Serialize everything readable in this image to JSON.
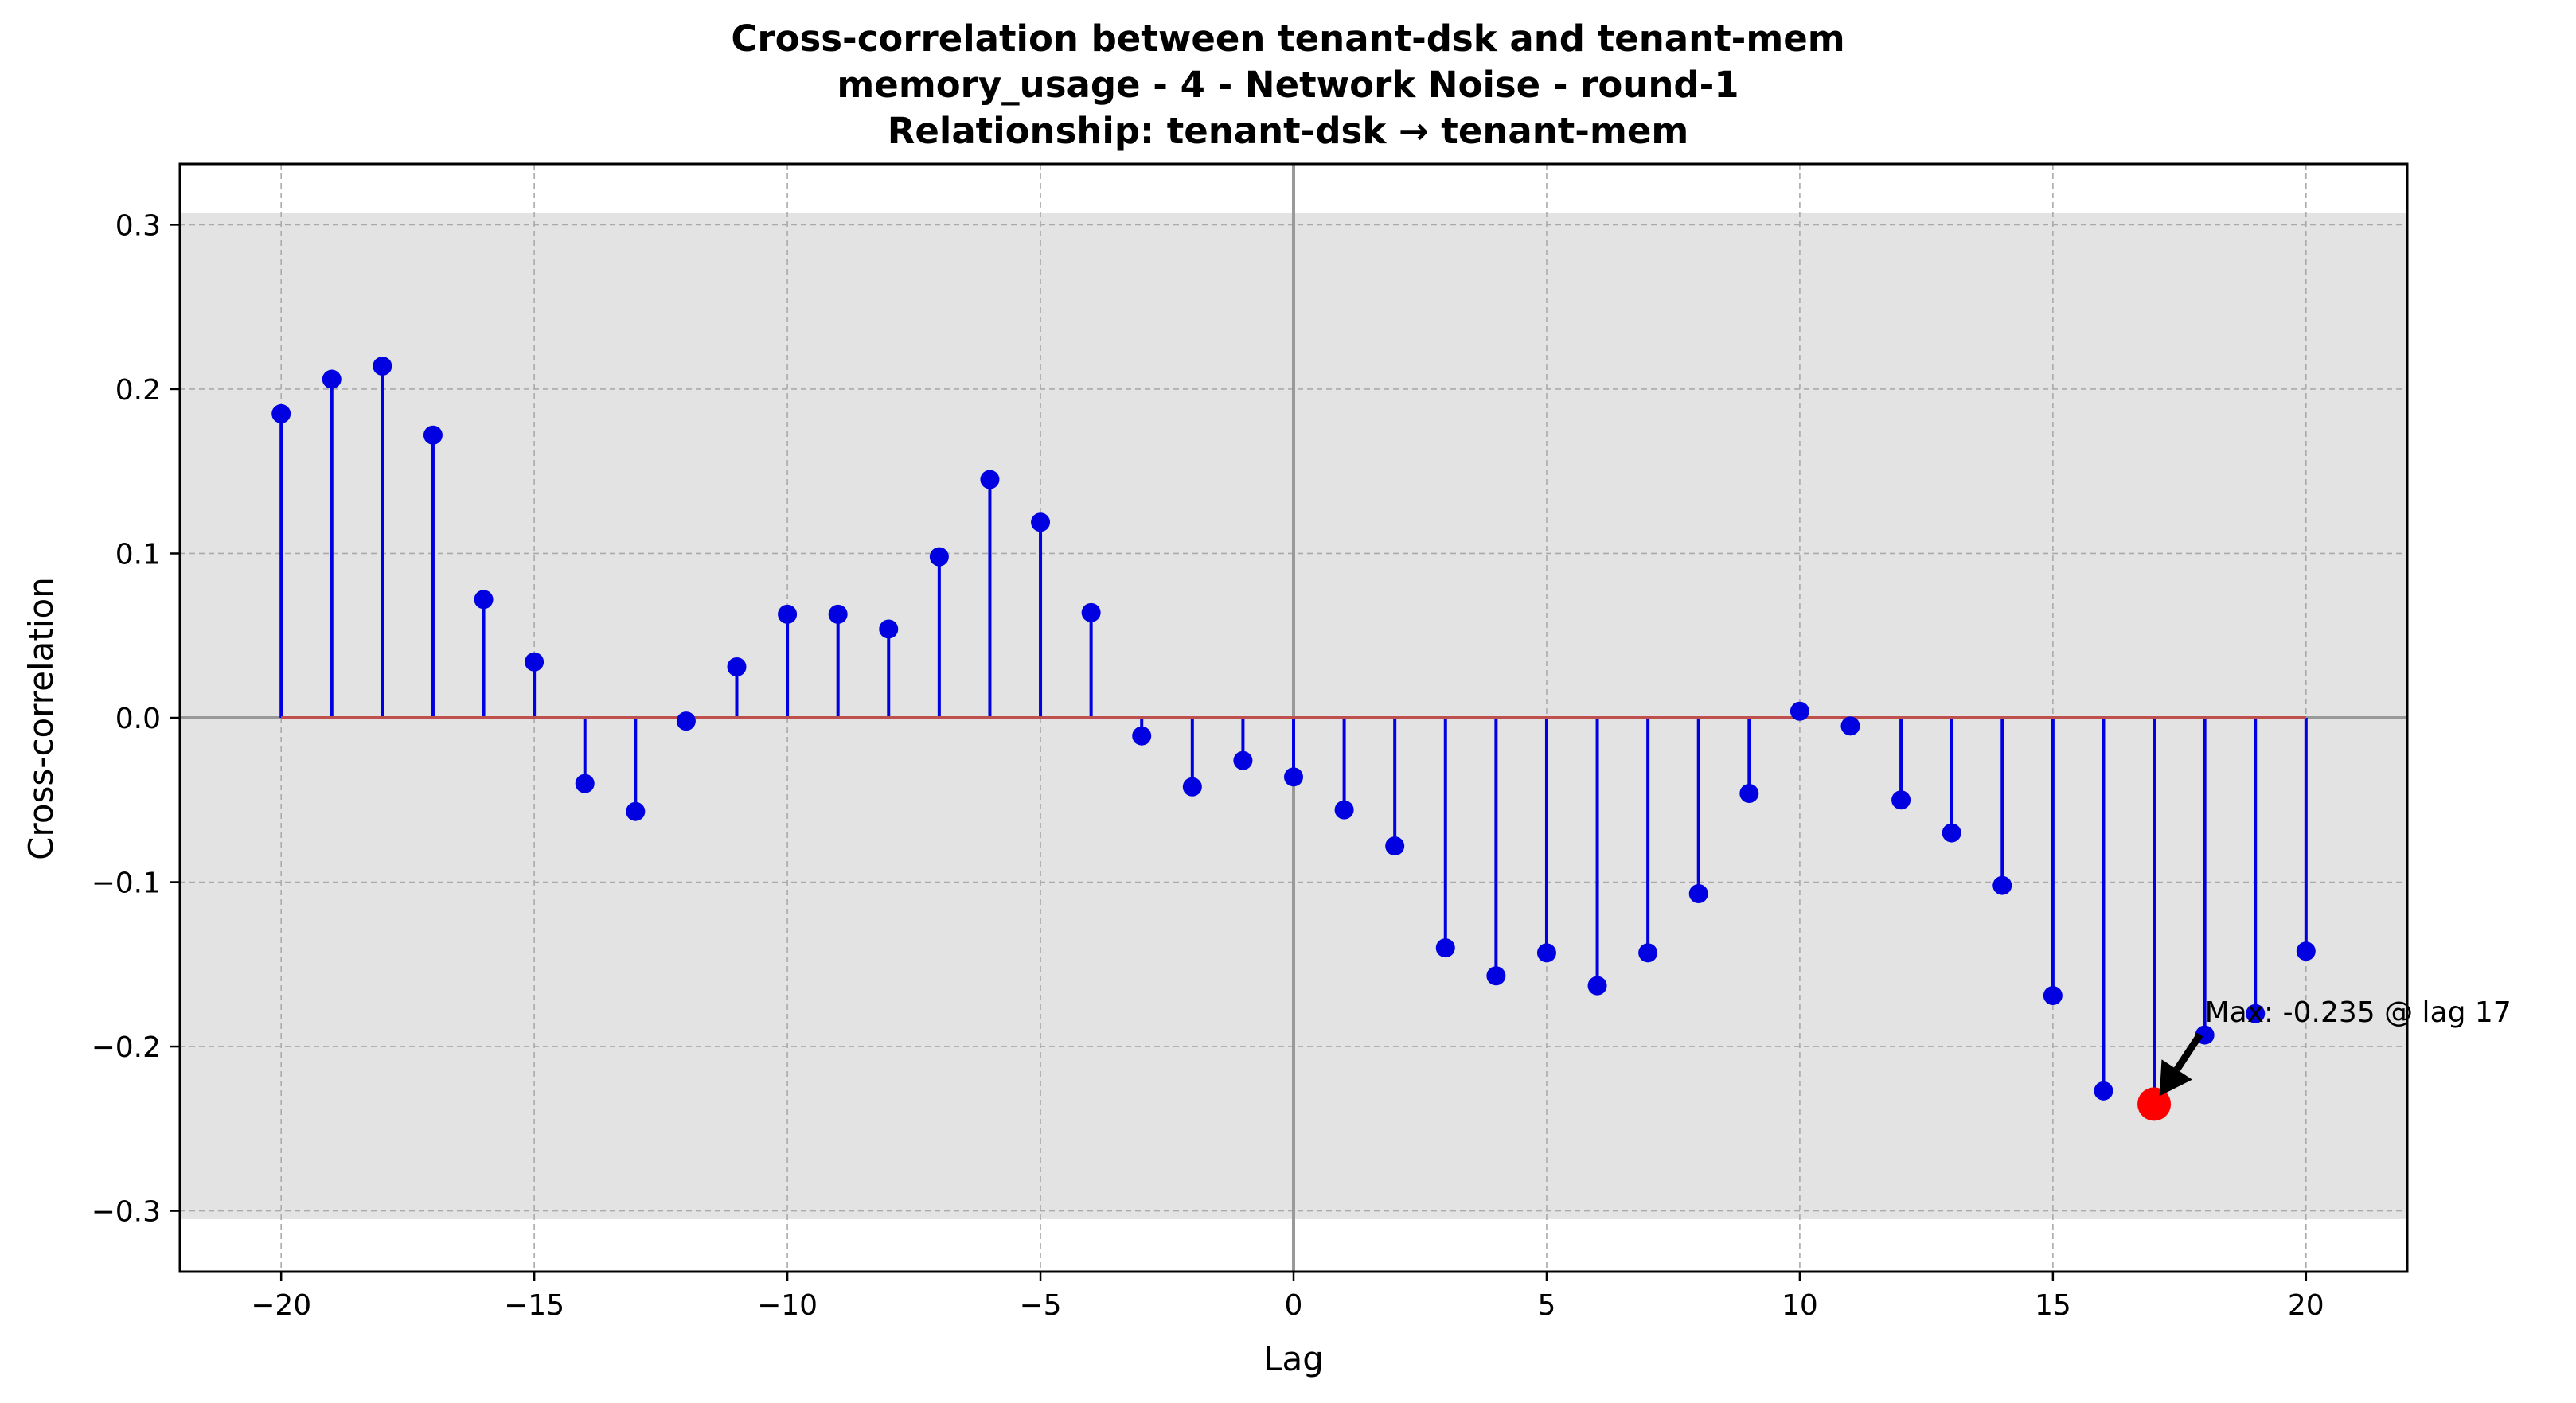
{
  "chart_data": {
    "type": "stem",
    "title_lines": [
      "Cross-correlation between tenant-dsk and tenant-mem",
      "memory_usage - 4 - Network Noise - round-1",
      "Relationship: tenant-dsk → tenant-mem"
    ],
    "xlabel": "Lag",
    "ylabel": "Cross-correlation",
    "xlim": [
      -22,
      22
    ],
    "ylim": [
      -0.337,
      0.337
    ],
    "xticks": [
      -20,
      -15,
      -10,
      -5,
      0,
      5,
      10,
      15,
      20
    ],
    "xtick_labels": [
      "−20",
      "−15",
      "−10",
      "−5",
      "0",
      "5",
      "10",
      "15",
      "20"
    ],
    "yticks": [
      -0.3,
      -0.2,
      -0.1,
      0.0,
      0.1,
      0.2,
      0.3
    ],
    "ytick_labels": [
      "−0.3",
      "−0.2",
      "−0.1",
      "0.0",
      "0.1",
      "0.2",
      "0.3"
    ],
    "grid": true,
    "confidence_band": [
      -0.305,
      0.307
    ],
    "colors": {
      "stem": "#0000e0",
      "marker": "#0000e0",
      "baseline": "#c0504d",
      "band": "#e3e3e3",
      "highlight": "#ff0000",
      "zero_lines": "#999999",
      "grid": "#aaaaaa"
    },
    "lags": [
      -20,
      -19,
      -18,
      -17,
      -16,
      -15,
      -14,
      -13,
      -12,
      -11,
      -10,
      -9,
      -8,
      -7,
      -6,
      -5,
      -4,
      -3,
      -2,
      -1,
      0,
      1,
      2,
      3,
      4,
      5,
      6,
      7,
      8,
      9,
      10,
      11,
      12,
      13,
      14,
      15,
      16,
      17,
      18,
      19,
      20
    ],
    "values": [
      0.185,
      0.206,
      0.214,
      0.172,
      0.072,
      0.034,
      -0.04,
      -0.057,
      -0.002,
      0.031,
      0.063,
      0.063,
      0.054,
      0.098,
      0.145,
      0.119,
      0.064,
      -0.011,
      -0.042,
      -0.026,
      -0.036,
      -0.056,
      -0.078,
      -0.14,
      -0.157,
      -0.143,
      -0.163,
      -0.143,
      -0.107,
      -0.046,
      0.004,
      -0.005,
      -0.05,
      -0.07,
      -0.102,
      -0.169,
      -0.227,
      -0.235,
      -0.193,
      -0.18,
      -0.142
    ],
    "highlight": {
      "lag": 17,
      "value": -0.235
    },
    "annotation": {
      "text": "Max: -0.235 @ lag 17",
      "text_anchor": {
        "lag": 18.0,
        "value": -0.185
      }
    }
  }
}
